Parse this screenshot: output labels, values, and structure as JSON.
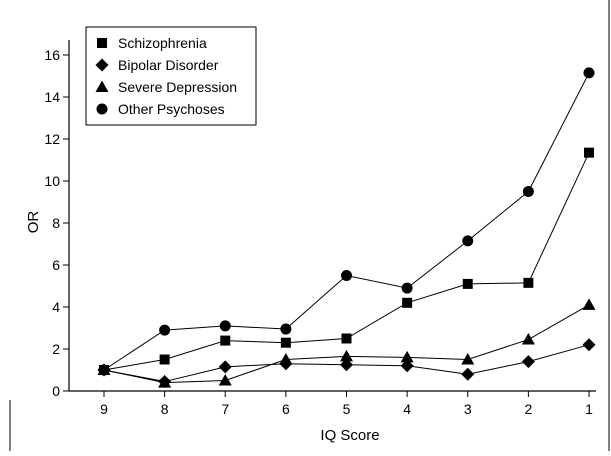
{
  "chart_data": {
    "type": "line",
    "xlabel": "IQ Score",
    "ylabel": "OR",
    "x": [
      9,
      8,
      7,
      6,
      5,
      4,
      3,
      2,
      1
    ],
    "x_reversed": true,
    "ylim": [
      0,
      16
    ],
    "yticks": [
      0,
      2,
      4,
      6,
      8,
      10,
      12,
      14,
      16
    ],
    "grid": false,
    "legend_position": "top-left",
    "series": [
      {
        "name": "Schizophrenia",
        "marker": "square",
        "values": [
          1.0,
          1.5,
          2.4,
          2.3,
          2.5,
          4.2,
          5.1,
          5.15,
          11.35
        ]
      },
      {
        "name": "Bipolar Disorder",
        "marker": "diamond",
        "values": [
          1.0,
          0.45,
          1.15,
          1.3,
          1.25,
          1.2,
          0.8,
          1.4,
          2.2
        ]
      },
      {
        "name": "Severe Depression",
        "marker": "triangle",
        "values": [
          1.0,
          0.4,
          0.5,
          1.5,
          1.65,
          1.6,
          1.5,
          2.45,
          4.1
        ]
      },
      {
        "name": "Other Psychoses",
        "marker": "circle",
        "values": [
          1.0,
          2.9,
          3.1,
          2.95,
          5.5,
          4.9,
          7.15,
          9.5,
          15.15
        ]
      }
    ]
  }
}
